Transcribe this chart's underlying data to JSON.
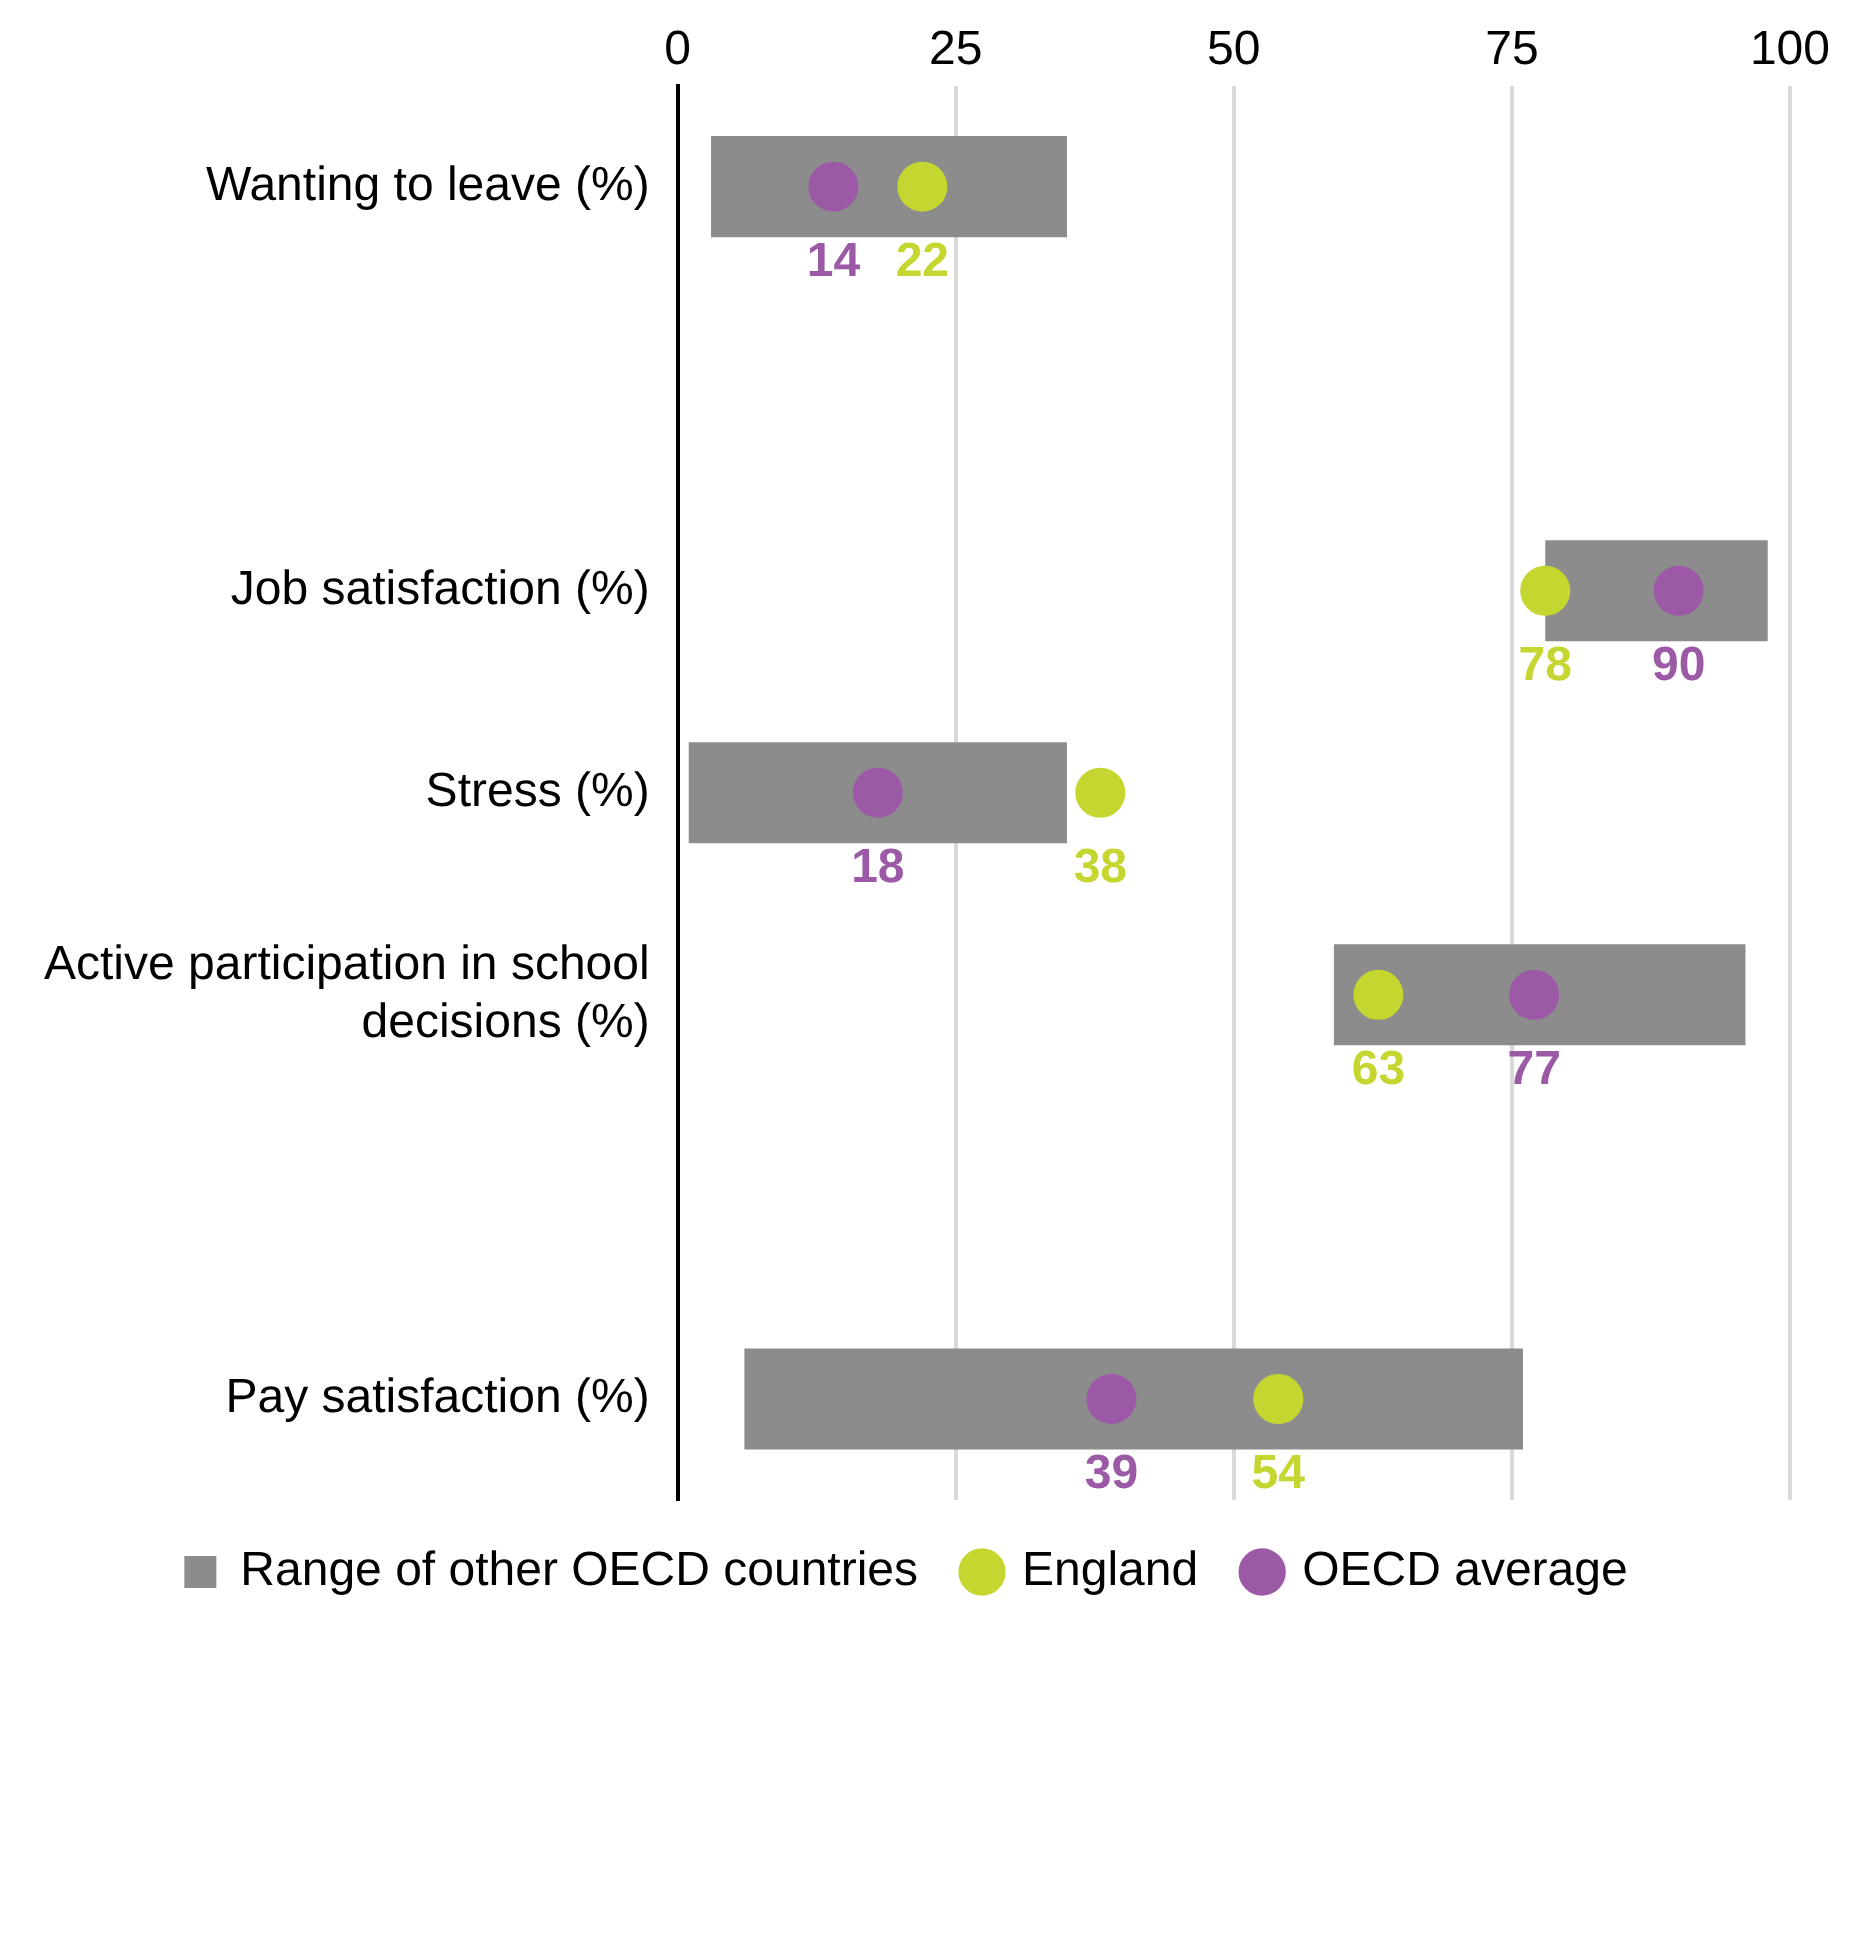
{
  "chart_data": {
    "type": "bar",
    "orientation": "horizontal",
    "categories": [
      "Wanting to leave (%)",
      null,
      "Job satisfaction (%)",
      "Stress (%)",
      "Active participation in school decisions (%)",
      null,
      "Pay satisfaction (%)"
    ],
    "series": [
      {
        "name": "Range of other OECD countries",
        "color": "#8c8c8c",
        "base": [
          3,
          null,
          78,
          1,
          59,
          null,
          6
        ],
        "values": [
          32,
          null,
          20,
          34,
          37,
          null,
          70
        ]
      },
      {
        "name": "England",
        "type": "scatter",
        "color": "#c5d630",
        "values": [
          22,
          null,
          78,
          38,
          63,
          null,
          54
        ],
        "value_labels": [
          "22",
          null,
          "78",
          "38",
          "63",
          null,
          "54"
        ]
      },
      {
        "name": "OECD average",
        "type": "scatter",
        "color": "#9b59a6",
        "values": [
          14,
          null,
          90,
          18,
          77,
          null,
          39
        ],
        "value_labels": [
          "14",
          null,
          "90",
          "18",
          "77",
          null,
          "39"
        ]
      }
    ],
    "xlim": [
      0,
      100
    ],
    "xticks": [
      0,
      25,
      50,
      75,
      100
    ],
    "grid": "x",
    "legend": "bottom",
    "marker": "circle"
  }
}
